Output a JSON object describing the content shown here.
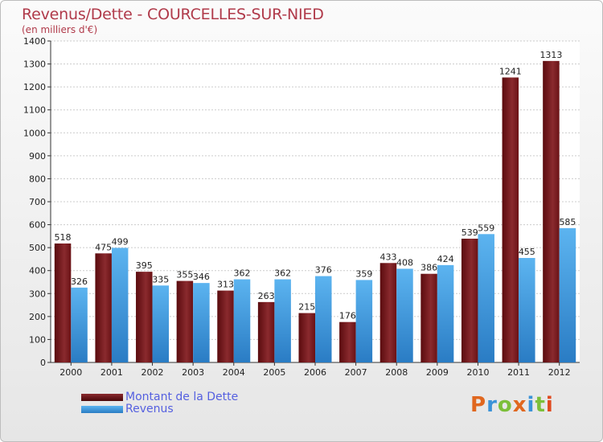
{
  "title": "Revenus/Dette - COURCELLES-SUR-NIED",
  "subtitle": "(en milliers d'€)",
  "logo": "Proxiti",
  "colors": {
    "dette": "#7a1418",
    "revenus": "#3b93d8"
  },
  "chart_data": {
    "type": "bar",
    "title": "Revenus/Dette - COURCELLES-SUR-NIED",
    "subtitle": "(en milliers d'€)",
    "categories": [
      "2000",
      "2001",
      "2002",
      "2003",
      "2004",
      "2005",
      "2006",
      "2007",
      "2008",
      "2009",
      "2010",
      "2011",
      "2012"
    ],
    "series": [
      {
        "name": "Montant de la Dette",
        "values": [
          518,
          475,
          395,
          355,
          313,
          263,
          215,
          176,
          433,
          386,
          539,
          1241,
          1313
        ]
      },
      {
        "name": "Revenus",
        "values": [
          326,
          499,
          335,
          346,
          362,
          362,
          376,
          359,
          408,
          424,
          559,
          455,
          585
        ]
      }
    ],
    "ylim": [
      0,
      1400
    ],
    "yticks": [
      0,
      100,
      200,
      300,
      400,
      500,
      600,
      700,
      800,
      900,
      1000,
      1100,
      1200,
      1300,
      1400
    ],
    "grid": true,
    "legend": "bottom-left"
  }
}
